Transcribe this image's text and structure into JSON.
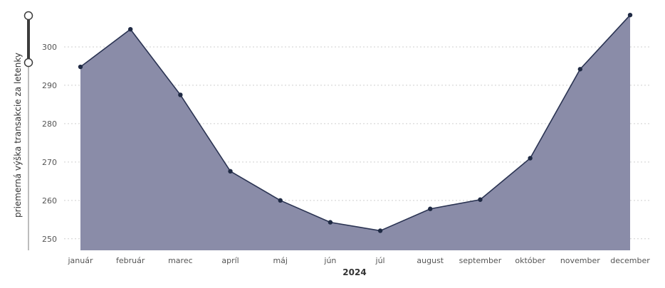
{
  "chart_data": {
    "type": "area",
    "title": "",
    "xlabel": "2024",
    "ylabel": "priemerná výška transakcie za letenky",
    "categories": [
      "január",
      "február",
      "marec",
      "apríl",
      "máj",
      "jún",
      "júl",
      "august",
      "september",
      "október",
      "november",
      "december"
    ],
    "series": [
      {
        "name": "",
        "values": [
          294.8,
          304.6,
          287.5,
          267.6,
          260.0,
          254.3,
          252.1,
          257.8,
          260.2,
          271.0,
          294.2,
          308.3
        ]
      }
    ],
    "ylim": [
      247,
      310
    ],
    "yticks": [
      250,
      260,
      270,
      280,
      290,
      300
    ],
    "grid": true,
    "legend": "none",
    "colors": {
      "fill": "#8a8ca8",
      "line": "#2a3352",
      "marker": "#1f2a44",
      "grid": "#cfcfcf",
      "slider": "#3c3c3c"
    }
  }
}
